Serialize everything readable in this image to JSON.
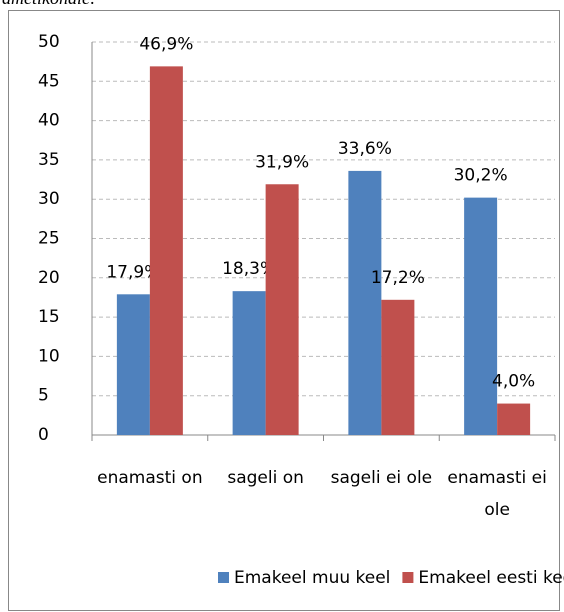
{
  "caption": "ametikohale:",
  "chart_data": {
    "type": "bar",
    "categories": [
      "enamasti on",
      "sageli on",
      "sageli ei ole",
      "enamasti ei ole"
    ],
    "series": [
      {
        "name": "Emakeel muu keel",
        "color": "#4f81bd",
        "values": [
          17.9,
          18.3,
          33.6,
          30.2
        ],
        "value_labels": [
          "17,9%",
          "18,3%",
          "33,6%",
          "30,2%"
        ]
      },
      {
        "name": "Emakeel eesti keel",
        "color": "#c0504d",
        "values": [
          46.9,
          31.9,
          17.2,
          4.0
        ],
        "value_labels": [
          "46,9%",
          "31,9%",
          "17,2%",
          "4,0%"
        ]
      }
    ],
    "ylim": [
      0,
      50
    ],
    "yticks": [
      0,
      5,
      10,
      15,
      20,
      25,
      30,
      35,
      40,
      45,
      50
    ],
    "grid": true,
    "legend": "bottom"
  }
}
